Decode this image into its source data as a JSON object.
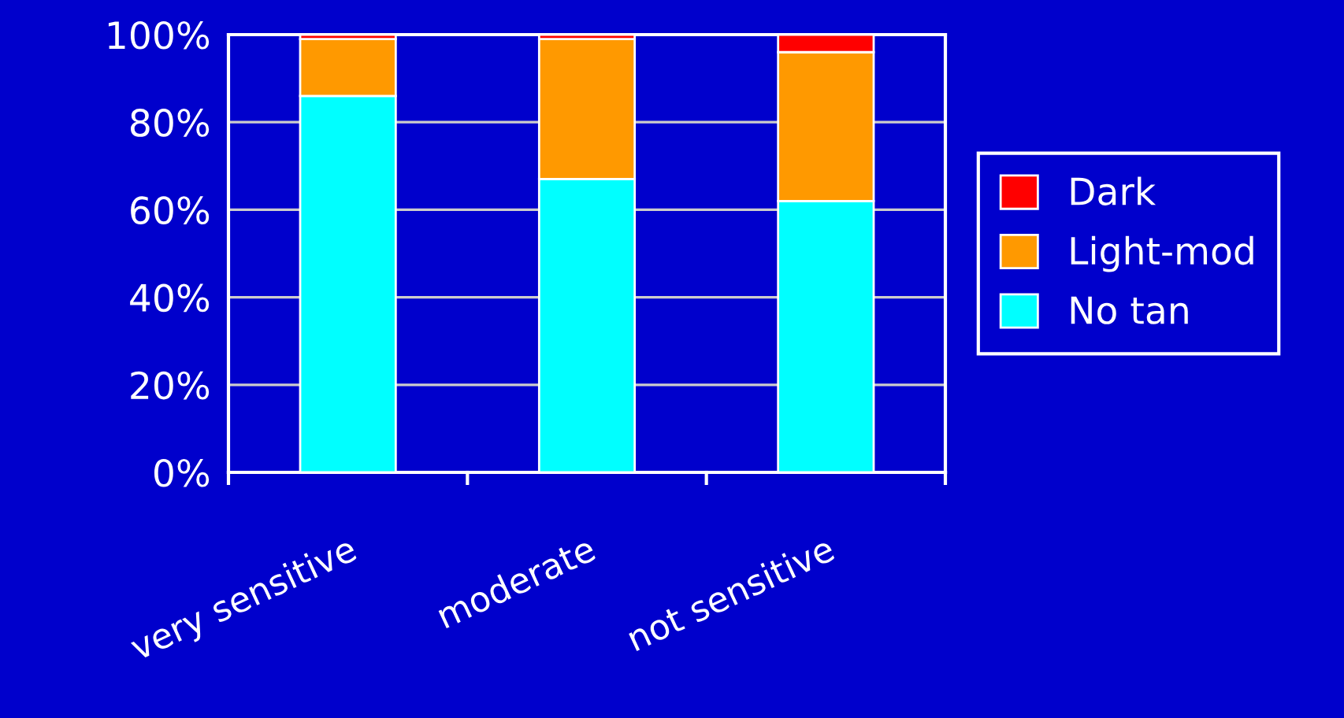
{
  "chart_data": {
    "type": "bar",
    "stacked": true,
    "categories": [
      "very sensitive",
      "moderate",
      "not sensitive"
    ],
    "series": [
      {
        "name": "No tan",
        "color": "#00ffff",
        "values": [
          86,
          67,
          62
        ]
      },
      {
        "name": "Light-mod",
        "color": "#ff9900",
        "values": [
          13,
          32,
          34
        ]
      },
      {
        "name": "Dark",
        "color": "#ff0000",
        "values": [
          1,
          1,
          4
        ]
      }
    ],
    "ylim": [
      0,
      100
    ],
    "yticks": [
      {
        "value": 0,
        "label": "0%"
      },
      {
        "value": 20,
        "label": "20%"
      },
      {
        "value": 40,
        "label": "40%"
      },
      {
        "value": 60,
        "label": "60%"
      },
      {
        "value": 80,
        "label": "80%"
      },
      {
        "value": 100,
        "label": "100%"
      }
    ],
    "grid": "y",
    "legend": "right"
  }
}
